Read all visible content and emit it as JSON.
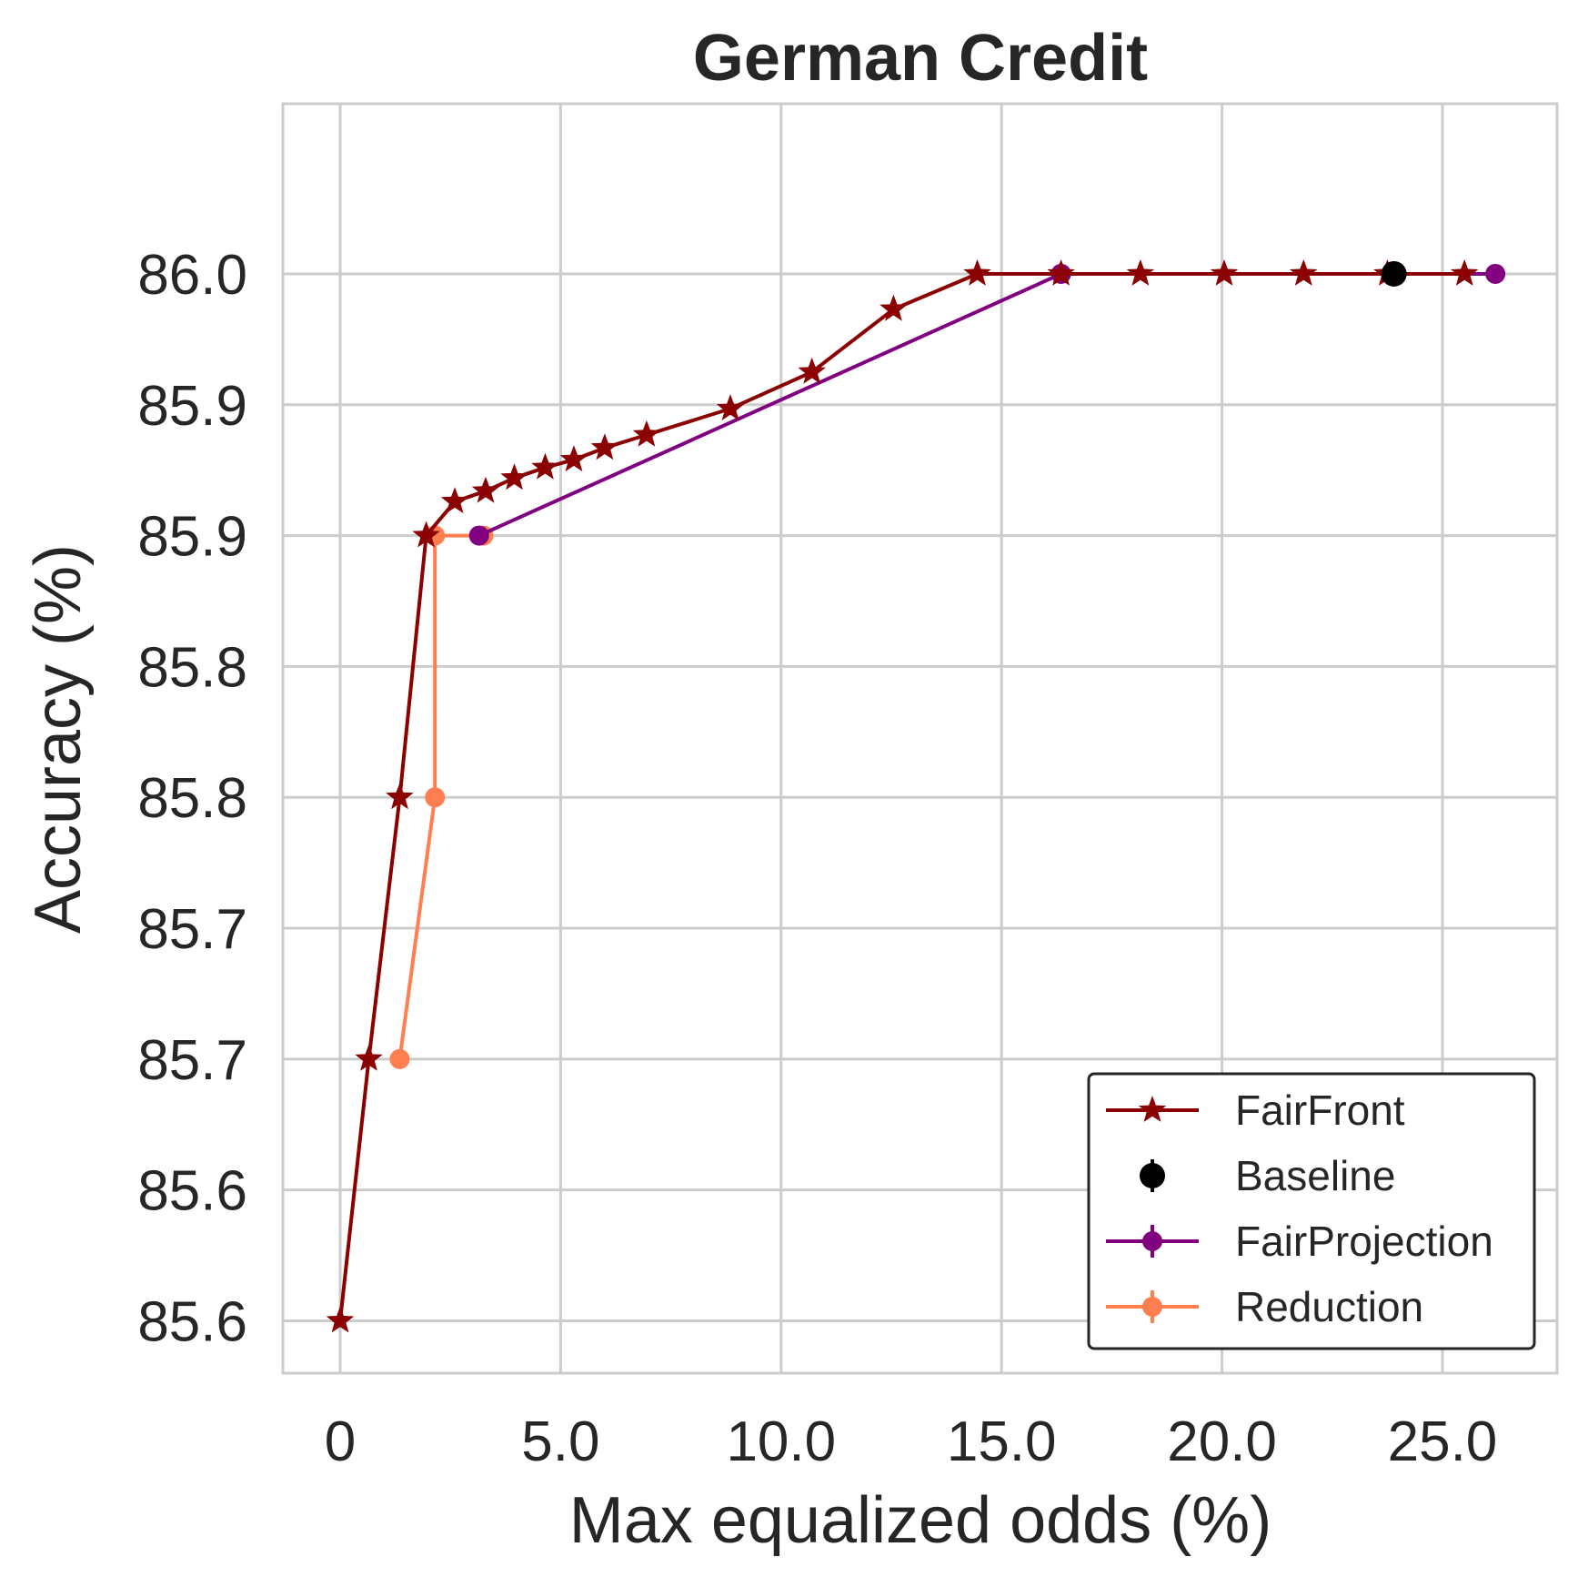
{
  "chart_data": {
    "type": "line",
    "title": "German Credit",
    "xlabel": "Max equalized odds (%)",
    "ylabel": "Accuracy (%)",
    "xlim": [
      -1.3,
      27.6
    ],
    "ylim": [
      85.555,
      86.04
    ],
    "x_ticks": [
      {
        "value": 0,
        "label": "0"
      },
      {
        "value": 5,
        "label": "5.0"
      },
      {
        "value": 10,
        "label": "10.0"
      },
      {
        "value": 15,
        "label": "15.0"
      },
      {
        "value": 20,
        "label": "20.0"
      },
      {
        "value": 25,
        "label": "25.0"
      }
    ],
    "y_ticks": [
      {
        "value": 85.575,
        "label": "85.6"
      },
      {
        "value": 85.625,
        "label": "85.6"
      },
      {
        "value": 85.675,
        "label": "85.7"
      },
      {
        "value": 85.725,
        "label": "85.7"
      },
      {
        "value": 85.775,
        "label": "85.8"
      },
      {
        "value": 85.825,
        "label": "85.8"
      },
      {
        "value": 85.875,
        "label": "85.9"
      },
      {
        "value": 85.925,
        "label": "85.9"
      },
      {
        "value": 85.975,
        "label": "86.0"
      }
    ],
    "grid": true,
    "legend_position": "bottom-right",
    "series": [
      {
        "name": "FairFront",
        "color": "#8b0000",
        "marker": "star",
        "points": [
          [
            0.0,
            85.575
          ],
          [
            0.65,
            85.675
          ],
          [
            1.35,
            85.775
          ],
          [
            1.95,
            85.875
          ],
          [
            2.6,
            85.888
          ],
          [
            3.3,
            85.892
          ],
          [
            3.95,
            85.897
          ],
          [
            4.65,
            85.901
          ],
          [
            5.3,
            85.904
          ],
          [
            6.0,
            85.9085
          ],
          [
            6.95,
            85.9135
          ],
          [
            8.85,
            85.9235
          ],
          [
            10.7,
            85.9375
          ],
          [
            12.55,
            85.9615
          ],
          [
            14.45,
            85.975
          ],
          [
            16.35,
            85.975
          ],
          [
            18.15,
            85.975
          ],
          [
            20.05,
            85.975
          ],
          [
            21.85,
            85.975
          ],
          [
            23.75,
            85.975
          ],
          [
            25.5,
            85.975
          ]
        ]
      },
      {
        "name": "Baseline",
        "color": "#000000",
        "marker": "circle",
        "points": [
          [
            23.9,
            85.975
          ]
        ]
      },
      {
        "name": "FairProjection",
        "color": "#800080",
        "marker": "circle",
        "points": [
          [
            3.15,
            85.875
          ],
          [
            16.35,
            85.975
          ],
          [
            26.2,
            85.975
          ]
        ]
      },
      {
        "name": "Reduction",
        "color": "#ff7f50",
        "marker": "circle",
        "points": [
          [
            1.35,
            85.675
          ],
          [
            2.15,
            85.775
          ],
          [
            2.15,
            85.875
          ],
          [
            3.25,
            85.875
          ]
        ]
      }
    ]
  }
}
